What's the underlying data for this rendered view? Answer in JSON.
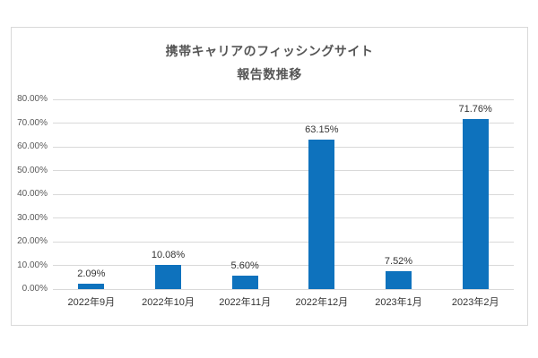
{
  "chart_data": {
    "type": "bar",
    "title": "携帯キャリアのフィッシングサイト 報告数推移",
    "title_line1": "携帯キャリアのフィッシングサイト",
    "title_line2": "報告数推移",
    "categories": [
      "2022年9月",
      "2022年10月",
      "2022年11月",
      "2022年12月",
      "2023年1月",
      "2023年2月"
    ],
    "values": [
      2.09,
      10.08,
      5.6,
      63.15,
      7.52,
      71.76
    ],
    "data_labels": [
      "2.09%",
      "10.08%",
      "5.60%",
      "63.15%",
      "7.52%",
      "71.76%"
    ],
    "ytick_labels": [
      "0.00%",
      "10.00%",
      "20.00%",
      "30.00%",
      "40.00%",
      "50.00%",
      "60.00%",
      "70.00%",
      "80.00%"
    ],
    "ytick_step": 10,
    "ylim": [
      0,
      80
    ],
    "xlabel": "",
    "ylabel": "",
    "grid": true,
    "legend_position": "none",
    "colors": {
      "bar": "#0e72bd",
      "gridline": "#d9d9d9",
      "card_border": "#d9d9d9",
      "title_text": "#555555",
      "axis_text": "#595959",
      "label_text": "#333333",
      "background": "#ffffff"
    }
  }
}
